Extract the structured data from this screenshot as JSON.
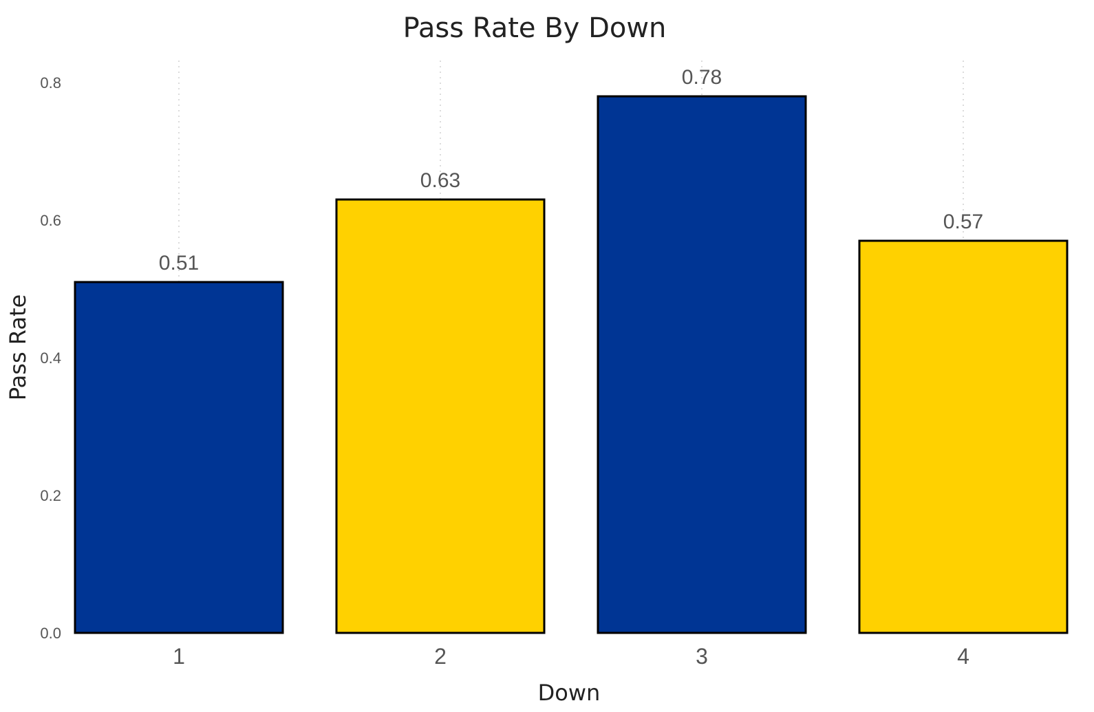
{
  "chart_data": {
    "type": "bar",
    "title": "Pass Rate By Down",
    "xlabel": "Down",
    "ylabel": "Pass Rate",
    "categories": [
      "1",
      "2",
      "3",
      "4"
    ],
    "values": [
      0.51,
      0.63,
      0.78,
      0.57
    ],
    "data_labels": [
      "0.51",
      "0.63",
      "0.78",
      "0.57"
    ],
    "bar_colors": [
      "#003594",
      "#FFD100",
      "#003594",
      "#FFD100"
    ],
    "ylim": [
      0,
      0.8
    ],
    "yticks": [
      0.0,
      0.2,
      0.4,
      0.6,
      0.8
    ],
    "ytick_labels": [
      "0.0",
      "0.2",
      "0.4",
      "0.6",
      "0.8"
    ],
    "grid": "vertical-dotted",
    "legend": "none"
  }
}
